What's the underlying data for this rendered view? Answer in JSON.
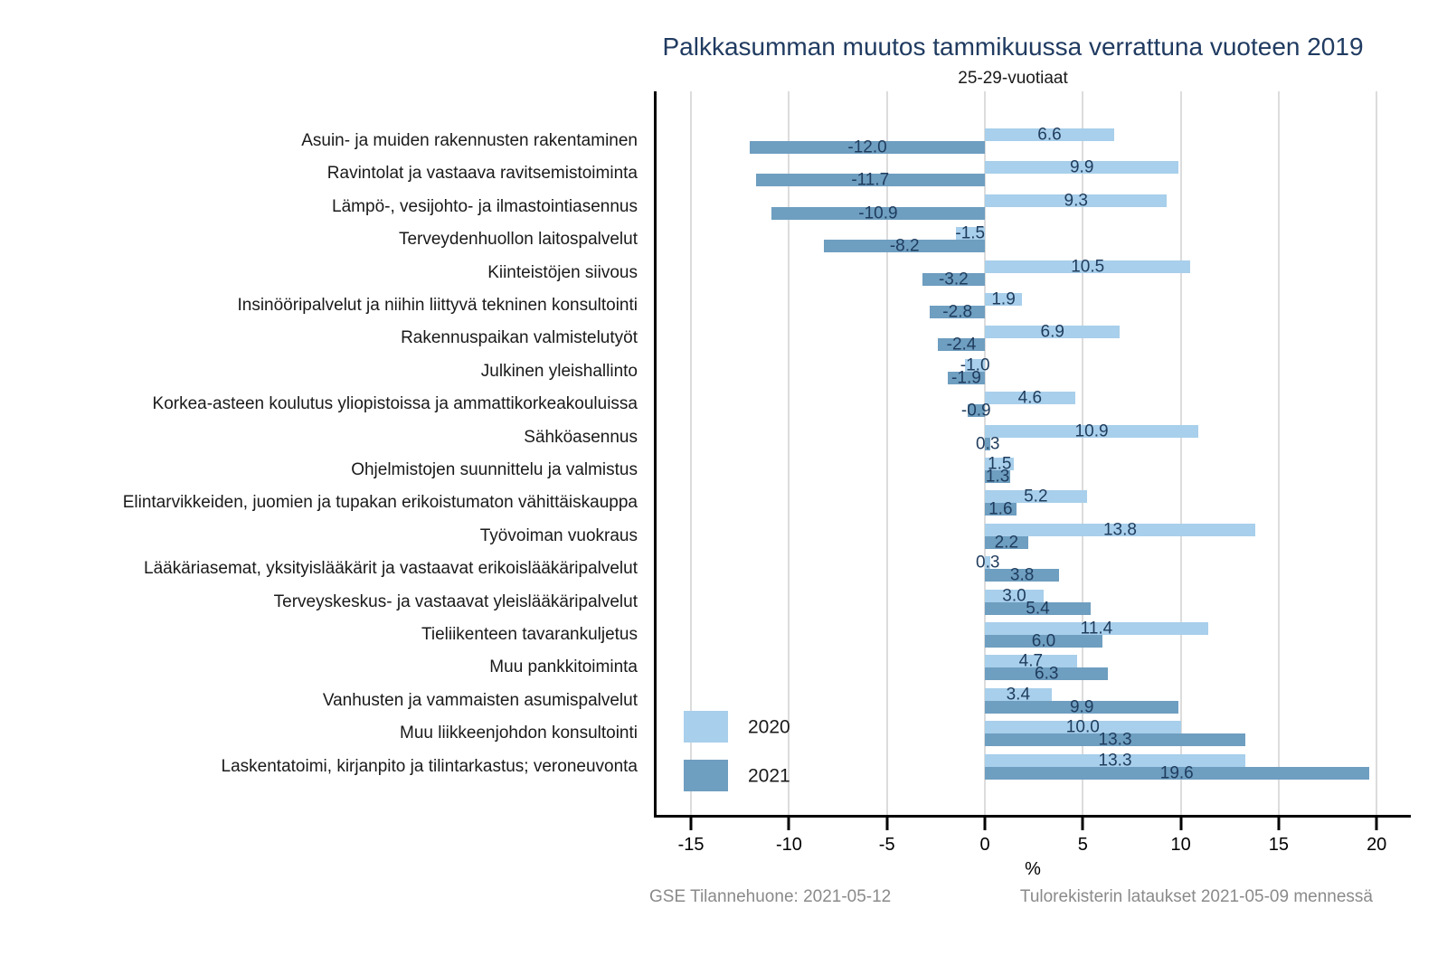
{
  "title": "Palkkasumman muutos tammikuussa verrattuna vuoteen 2019",
  "subtitle": "25-29-vuotiaat",
  "footer": {
    "left": "GSE Tilannehuone: 2021-05-12",
    "right": "Tulorekisterin lataukset 2021-05-09 mennessä"
  },
  "colors": {
    "series_2020": "#a8cfeb",
    "series_2021": "#6e9ec0",
    "title_text": "#203b61",
    "value_label_text": "#1f3c5d",
    "gridline": "#dcdcdc",
    "footer_text": "#8a8a8a",
    "axis": "#000000"
  },
  "chart_data": {
    "type": "bar",
    "orientation": "horizontal",
    "title": "Palkkasumman muutos tammikuussa verrattuna vuoteen 2019",
    "subtitle": "25-29-vuotiaat",
    "xlabel": "%",
    "xlim": [
      -17,
      21.8
    ],
    "x_ticks": [
      -15,
      -10,
      -5,
      0,
      5,
      10,
      15,
      20
    ],
    "grid": true,
    "value_labels": true,
    "legend_position": "bottom-left-inside",
    "categories": [
      "Asuin- ja muiden rakennusten rakentaminen",
      "Ravintolat ja vastaava ravitsemistoiminta",
      "Lämpö-, vesijohto- ja ilmastointiasennus",
      "Terveydenhuollon laitospalvelut",
      "Kiinteistöjen siivous",
      "Insinööripalvelut ja niihin liittyvä tekninen konsultointi",
      "Rakennuspaikan valmistelutyöt",
      "Julkinen yleishallinto",
      "Korkea-asteen koulutus yliopistoissa ja ammattikorkeakouluissa",
      "Sähköasennus",
      "Ohjelmistojen suunnittelu ja valmistus",
      "Elintarvikkeiden, juomien ja tupakan erikoistumaton vähittäiskauppa",
      "Työvoiman vuokraus",
      "Lääkäriasemat, yksityislääkärit ja vastaavat erikoislääkäripalvelut",
      "Terveyskeskus- ja vastaavat yleislääkäripalvelut",
      "Tieliikenteen tavarankuljetus",
      "Muu pankkitoiminta",
      "Vanhusten ja vammaisten asumispalvelut",
      "Muu liikkeenjohdon konsultointi",
      "Laskentatoimi, kirjanpito ja tilintarkastus; veroneuvonta"
    ],
    "series": [
      {
        "name": "2020",
        "color": "#a8cfeb",
        "values": [
          6.6,
          9.9,
          9.3,
          -1.5,
          10.5,
          1.9,
          6.9,
          -1.0,
          4.6,
          10.9,
          1.5,
          5.2,
          13.8,
          0.3,
          3.0,
          11.4,
          4.7,
          3.4,
          10.0,
          13.3
        ]
      },
      {
        "name": "2021",
        "color": "#6e9ec0",
        "values": [
          -12.0,
          -11.7,
          -10.9,
          -8.2,
          -3.2,
          -2.8,
          -2.4,
          -1.9,
          -0.9,
          0.3,
          1.3,
          1.6,
          2.2,
          3.8,
          5.4,
          6.0,
          6.3,
          9.9,
          13.3,
          19.6
        ]
      }
    ]
  }
}
